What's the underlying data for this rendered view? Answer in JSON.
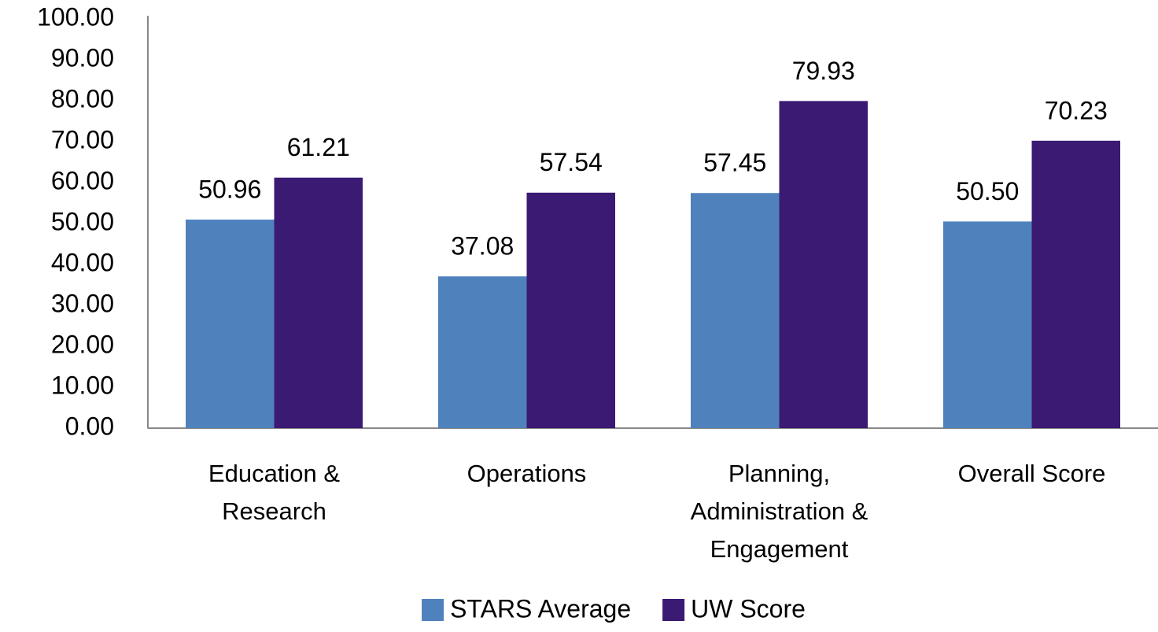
{
  "chart_data": {
    "type": "bar",
    "categories": [
      "Education & Research",
      "Operations",
      "Planning, Administration & Engagement",
      "Overall Score"
    ],
    "series": [
      {
        "name": "STARS Average",
        "color": "#4f81bd",
        "values": [
          50.96,
          37.08,
          57.45,
          50.5
        ],
        "value_labels": [
          "50.96",
          "37.08",
          "57.45",
          "50.50"
        ]
      },
      {
        "name": "UW Score",
        "color": "#3b1a73",
        "values": [
          61.21,
          57.54,
          79.93,
          70.23
        ],
        "value_labels": [
          "61.21",
          "57.54",
          "79.93",
          "70.23"
        ]
      }
    ],
    "ylim": [
      0,
      100
    ],
    "yticks": [
      {
        "value": 0,
        "label": "0.00"
      },
      {
        "value": 10,
        "label": "10.00"
      },
      {
        "value": 20,
        "label": "20.00"
      },
      {
        "value": 30,
        "label": "30.00"
      },
      {
        "value": 40,
        "label": "40.00"
      },
      {
        "value": 50,
        "label": "50.00"
      },
      {
        "value": 60,
        "label": "60.00"
      },
      {
        "value": 70,
        "label": "70.00"
      },
      {
        "value": 80,
        "label": "80.00"
      },
      {
        "value": 90,
        "label": "90.00"
      },
      {
        "value": 100,
        "label": "100.00"
      }
    ],
    "grid": false,
    "legend": "bottom"
  }
}
